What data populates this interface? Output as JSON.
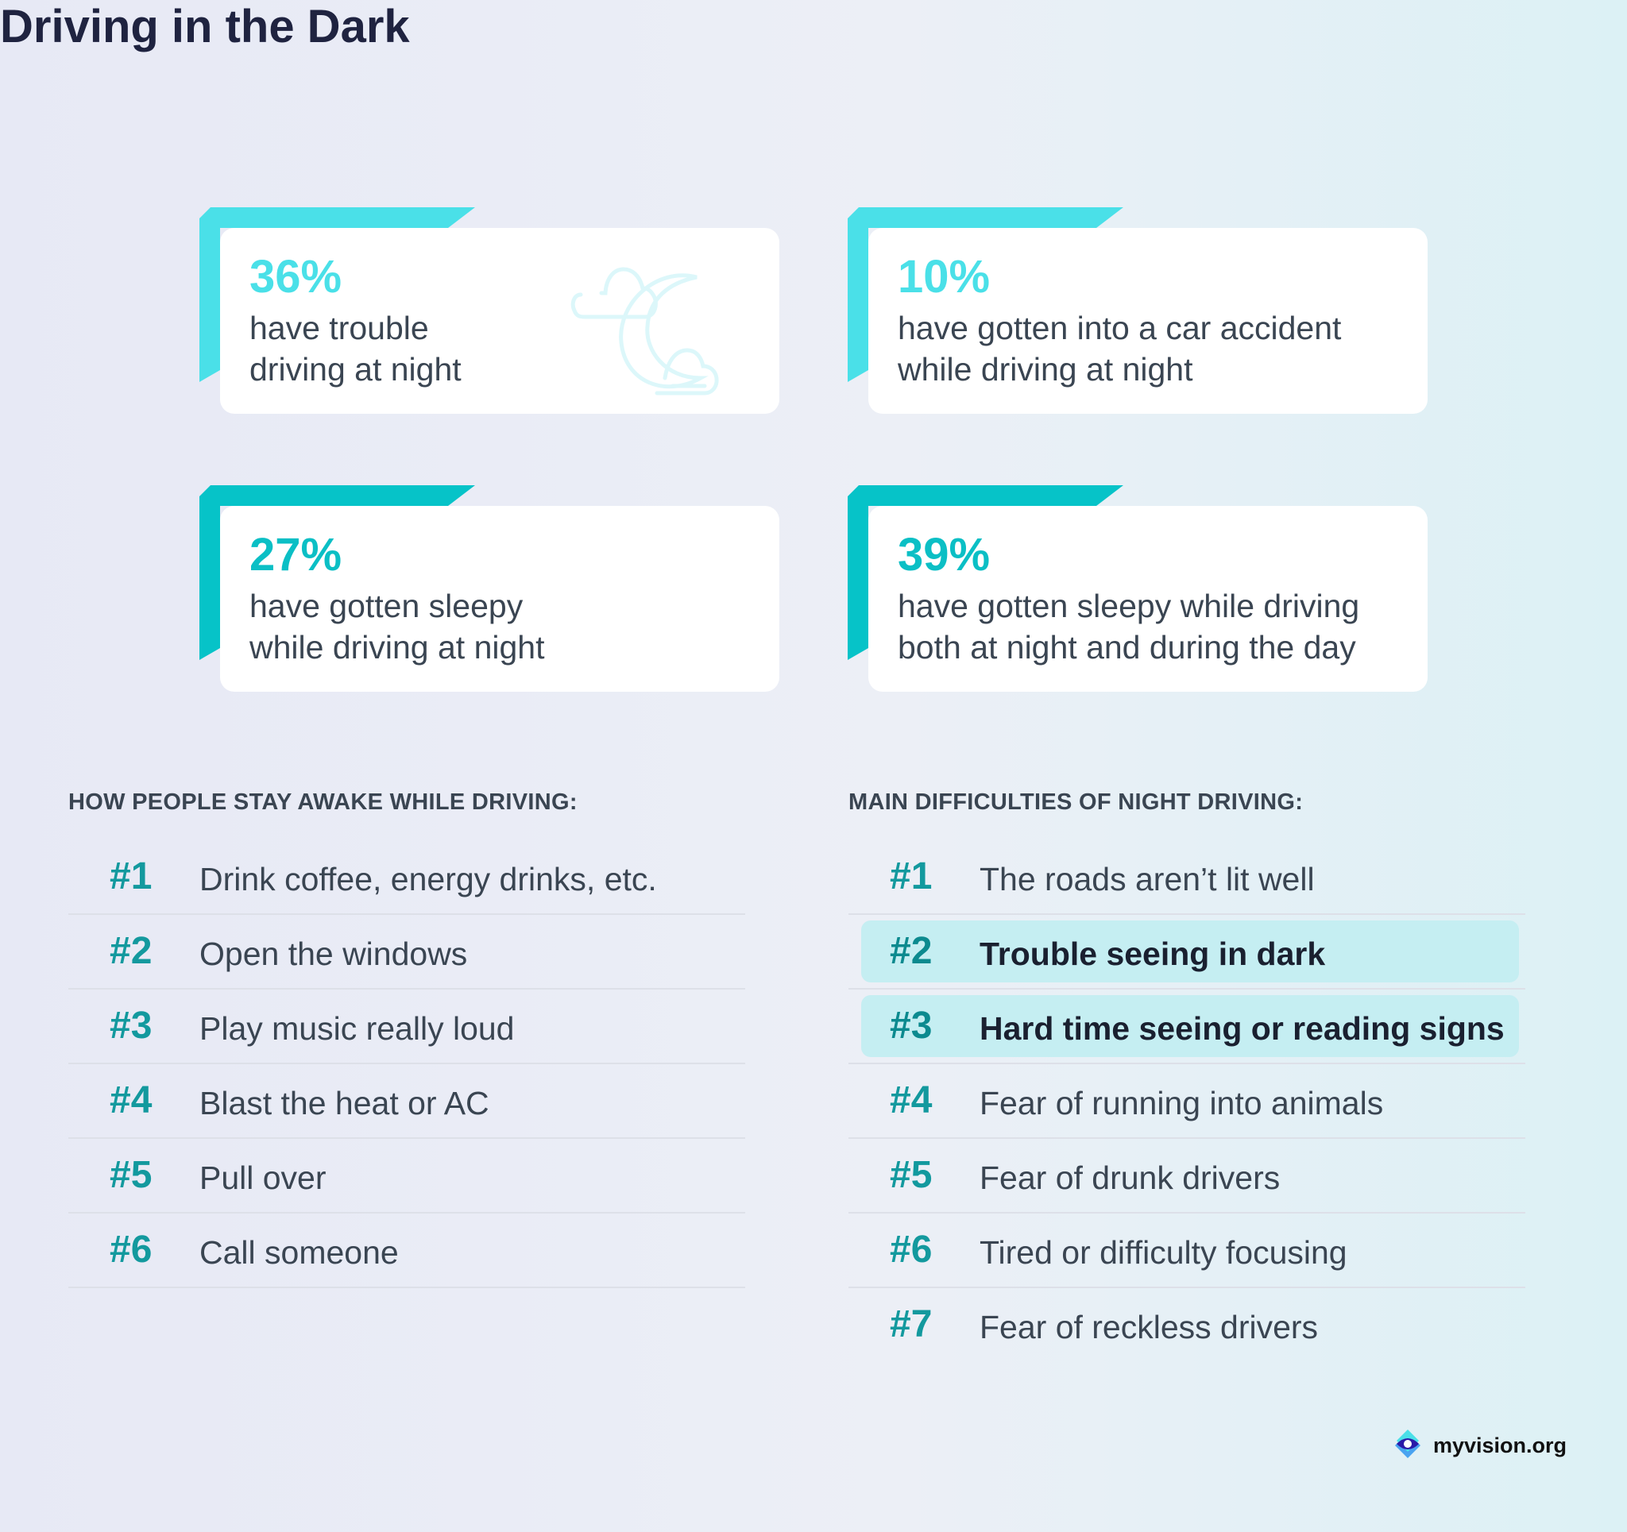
{
  "title": "Driving in the Dark",
  "colors": {
    "accent_light": "#4ae0e8",
    "accent_dark": "#06c3c8",
    "rank": "#13999e",
    "highlight": "#c5eef2"
  },
  "stats": [
    {
      "value": "36%",
      "text": "have trouble driving at night",
      "line1": "have trouble",
      "line2": "driving at night",
      "icon": "moon-clouds-icon"
    },
    {
      "value": "10%",
      "line1": "have gotten into a car accident",
      "line2": "while driving at night"
    },
    {
      "value": "27%",
      "line1": "have gotten sleepy",
      "line2": "while driving at night"
    },
    {
      "value": "39%",
      "line1": "have gotten sleepy while driving",
      "line2": "both at night and during the day"
    }
  ],
  "stay_awake": {
    "heading": "HOW PEOPLE STAY AWAKE WHILE DRIVING:",
    "items": [
      {
        "rank": "#1",
        "label": "Drink coffee, energy drinks, etc."
      },
      {
        "rank": "#2",
        "label": "Open the windows"
      },
      {
        "rank": "#3",
        "label": "Play music really loud"
      },
      {
        "rank": "#4",
        "label": "Blast the heat or AC"
      },
      {
        "rank": "#5",
        "label": "Pull over"
      },
      {
        "rank": "#6",
        "label": "Call someone"
      }
    ]
  },
  "difficulties": {
    "heading": "MAIN DIFFICULTIES OF NIGHT DRIVING:",
    "items": [
      {
        "rank": "#1",
        "label": "The roads aren’t lit well"
      },
      {
        "rank": "#2",
        "label": "Trouble seeing in dark",
        "highlighted": true
      },
      {
        "rank": "#3",
        "label": "Hard time seeing or reading signs",
        "highlighted": true
      },
      {
        "rank": "#4",
        "label": "Fear of running into animals"
      },
      {
        "rank": "#5",
        "label": "Fear of drunk drivers"
      },
      {
        "rank": "#6",
        "label": "Tired or difficulty focusing"
      },
      {
        "rank": "#7",
        "label": "Fear of reckless drivers"
      }
    ]
  },
  "logo": {
    "text": "myvision.org",
    "icon": "eye-diamond-logo-icon"
  }
}
